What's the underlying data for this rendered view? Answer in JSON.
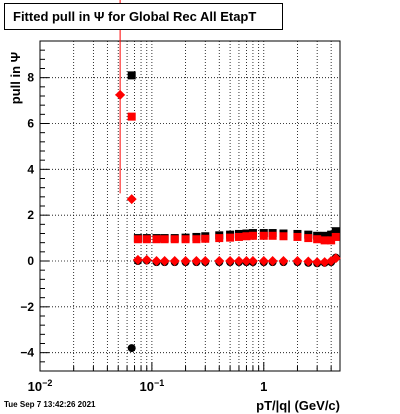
{
  "title": "Fitted pull in  Ψ  for Global Rec All EtapT",
  "datestamp": "Tue Sep  7 13:42:26 2021",
  "chart_data": {
    "type": "scatter",
    "title": "Fitted pull in  Ψ  for Global Rec All EtapT",
    "xlabel": "pT/|q| (GeV/c)",
    "ylabel": "pull in  Ψ",
    "xscale": "log",
    "xlim": [
      0.01,
      4.8
    ],
    "ylim": [
      -4.8,
      9.6
    ],
    "grid": true,
    "x_ticks": [
      {
        "value": 0.01,
        "base": "10",
        "exp": "−2"
      },
      {
        "value": 0.1,
        "base": "10",
        "exp": "−1"
      },
      {
        "value": 1,
        "base": "1",
        "exp": ""
      }
    ],
    "y_ticks": [
      {
        "value": -4,
        "label": "−4"
      },
      {
        "value": -2,
        "label": "−2"
      },
      {
        "value": 0,
        "label": "0"
      },
      {
        "value": 2,
        "label": "2"
      },
      {
        "value": 4,
        "label": "4"
      },
      {
        "value": 6,
        "label": "6"
      },
      {
        "value": 8,
        "label": "8"
      }
    ],
    "series": [
      {
        "color": "#000000",
        "marker": "square",
        "points": [
          {
            "x": 0.066,
            "y": 8.1
          },
          {
            "x": 0.075,
            "y": 1.0
          },
          {
            "x": 0.09,
            "y": 1.0
          },
          {
            "x": 0.11,
            "y": 1.0
          },
          {
            "x": 0.13,
            "y": 1.0
          },
          {
            "x": 0.16,
            "y": 1.0
          },
          {
            "x": 0.2,
            "y": 1.02
          },
          {
            "x": 0.25,
            "y": 1.05
          },
          {
            "x": 0.3,
            "y": 1.08
          },
          {
            "x": 0.4,
            "y": 1.12
          },
          {
            "x": 0.5,
            "y": 1.15
          },
          {
            "x": 0.6,
            "y": 1.18
          },
          {
            "x": 0.7,
            "y": 1.2
          },
          {
            "x": 0.8,
            "y": 1.22
          },
          {
            "x": 1.0,
            "y": 1.22
          },
          {
            "x": 1.2,
            "y": 1.22
          },
          {
            "x": 1.5,
            "y": 1.2
          },
          {
            "x": 2.0,
            "y": 1.18
          },
          {
            "x": 2.5,
            "y": 1.15
          },
          {
            "x": 3.0,
            "y": 1.1
          },
          {
            "x": 3.5,
            "y": 1.1
          },
          {
            "x": 4.0,
            "y": 1.15
          },
          {
            "x": 4.4,
            "y": 1.3
          }
        ]
      },
      {
        "color": "#000000",
        "marker": "circle",
        "points": [
          {
            "x": 0.066,
            "y": -3.8
          },
          {
            "x": 0.075,
            "y": 0.0
          },
          {
            "x": 0.09,
            "y": 0.02
          },
          {
            "x": 0.11,
            "y": -0.05
          },
          {
            "x": 0.13,
            "y": -0.05
          },
          {
            "x": 0.16,
            "y": -0.05
          },
          {
            "x": 0.2,
            "y": -0.05
          },
          {
            "x": 0.25,
            "y": -0.05
          },
          {
            "x": 0.3,
            "y": -0.05
          },
          {
            "x": 0.4,
            "y": -0.05
          },
          {
            "x": 0.5,
            "y": -0.05
          },
          {
            "x": 0.6,
            "y": -0.05
          },
          {
            "x": 0.7,
            "y": -0.05
          },
          {
            "x": 0.8,
            "y": -0.05
          },
          {
            "x": 1.0,
            "y": -0.05
          },
          {
            "x": 1.2,
            "y": -0.05
          },
          {
            "x": 1.5,
            "y": -0.05
          },
          {
            "x": 2.0,
            "y": -0.05
          },
          {
            "x": 2.5,
            "y": -0.08
          },
          {
            "x": 3.0,
            "y": -0.1
          },
          {
            "x": 3.5,
            "y": -0.08
          },
          {
            "x": 4.0,
            "y": -0.05
          },
          {
            "x": 4.4,
            "y": 0.15
          }
        ]
      },
      {
        "color": "#ff0000",
        "marker": "square",
        "points": [
          {
            "x": 0.066,
            "y": 6.3
          },
          {
            "x": 0.075,
            "y": 0.95
          },
          {
            "x": 0.09,
            "y": 0.95
          },
          {
            "x": 0.11,
            "y": 0.95
          },
          {
            "x": 0.13,
            "y": 0.95
          },
          {
            "x": 0.16,
            "y": 0.95
          },
          {
            "x": 0.2,
            "y": 0.95
          },
          {
            "x": 0.25,
            "y": 0.95
          },
          {
            "x": 0.3,
            "y": 0.97
          },
          {
            "x": 0.4,
            "y": 1.0
          },
          {
            "x": 0.5,
            "y": 1.02
          },
          {
            "x": 0.6,
            "y": 1.05
          },
          {
            "x": 0.7,
            "y": 1.08
          },
          {
            "x": 0.8,
            "y": 1.1
          },
          {
            "x": 1.0,
            "y": 1.1
          },
          {
            "x": 1.2,
            "y": 1.1
          },
          {
            "x": 1.5,
            "y": 1.08
          },
          {
            "x": 2.0,
            "y": 1.05
          },
          {
            "x": 2.5,
            "y": 1.0
          },
          {
            "x": 3.0,
            "y": 0.95
          },
          {
            "x": 3.5,
            "y": 0.9
          },
          {
            "x": 4.0,
            "y": 0.9
          },
          {
            "x": 4.4,
            "y": 1.05
          }
        ]
      },
      {
        "color": "#ff0000",
        "marker": "diamond",
        "points": [
          {
            "x": 0.052,
            "y": 7.25,
            "yerr": 4.3,
            "xerr": [
              0.005,
              0.005
            ]
          },
          {
            "x": 0.066,
            "y": 2.7
          },
          {
            "x": 0.075,
            "y": 0.05
          },
          {
            "x": 0.09,
            "y": 0.05
          },
          {
            "x": 0.11,
            "y": 0.0
          },
          {
            "x": 0.13,
            "y": 0.0
          },
          {
            "x": 0.16,
            "y": 0.0
          },
          {
            "x": 0.2,
            "y": 0.0
          },
          {
            "x": 0.25,
            "y": 0.0
          },
          {
            "x": 0.3,
            "y": 0.0
          },
          {
            "x": 0.4,
            "y": 0.0
          },
          {
            "x": 0.5,
            "y": 0.0
          },
          {
            "x": 0.6,
            "y": 0.0
          },
          {
            "x": 0.7,
            "y": 0.0
          },
          {
            "x": 0.8,
            "y": 0.0
          },
          {
            "x": 1.0,
            "y": 0.0
          },
          {
            "x": 1.2,
            "y": 0.0
          },
          {
            "x": 1.5,
            "y": 0.0
          },
          {
            "x": 2.0,
            "y": 0.0
          },
          {
            "x": 2.5,
            "y": -0.02
          },
          {
            "x": 3.0,
            "y": -0.05
          },
          {
            "x": 3.5,
            "y": -0.05
          },
          {
            "x": 4.0,
            "y": 0.0
          },
          {
            "x": 4.4,
            "y": 0.12
          }
        ]
      }
    ]
  }
}
